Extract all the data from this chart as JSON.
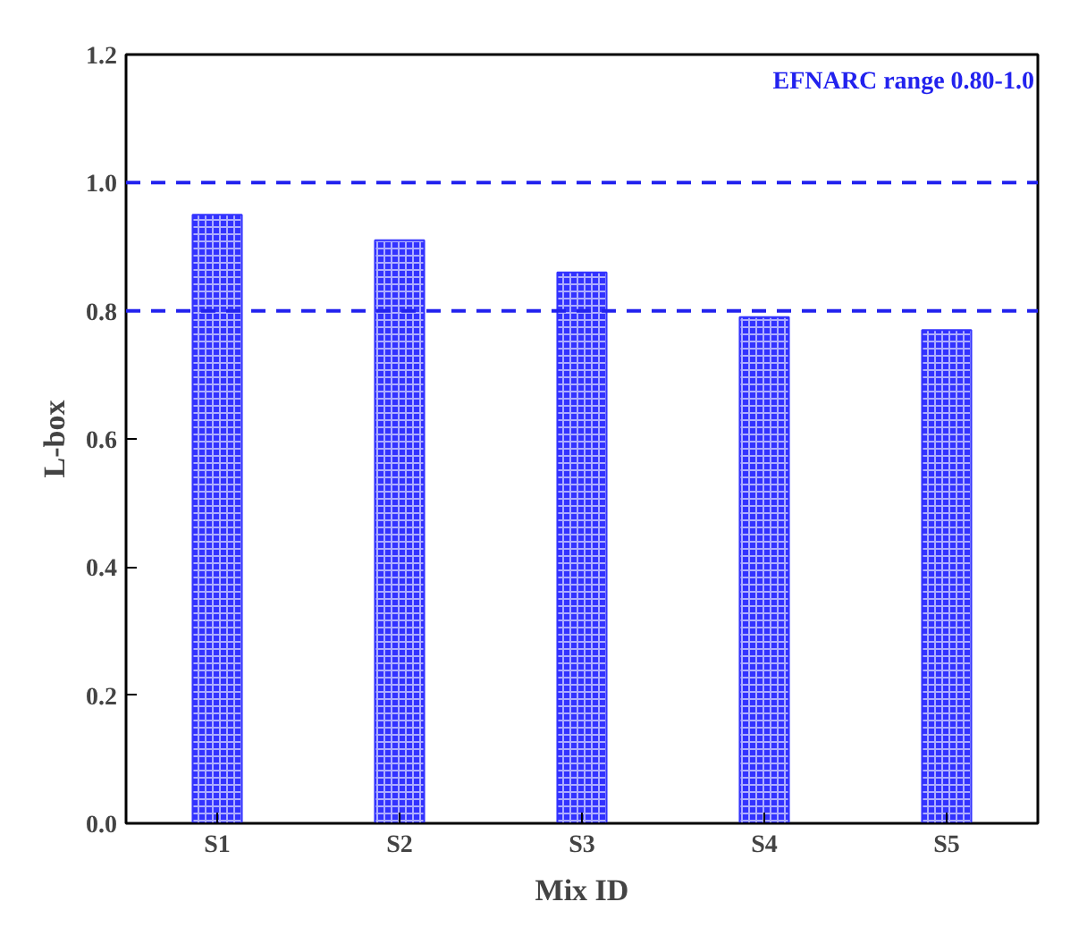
{
  "chart_data": {
    "type": "bar",
    "xlabel": "Mix ID",
    "ylabel": "L-box",
    "categories": [
      "S1",
      "S2",
      "S3",
      "S4",
      "S5"
    ],
    "values": [
      0.95,
      0.91,
      0.86,
      0.79,
      0.77
    ],
    "color": "#3333ff",
    "ylim": [
      0,
      1.2
    ],
    "yticks": [
      {
        "value": 0,
        "label": "0.0"
      },
      {
        "value": 0.2,
        "label": "0.2"
      },
      {
        "value": 0.4,
        "label": "0.4"
      },
      {
        "value": 0.6,
        "label": "0.6"
      },
      {
        "value": 0.8,
        "label": "0.8"
      },
      {
        "value": 1.0,
        "label": "1.0"
      },
      {
        "value": 1.2,
        "label": "1.2"
      }
    ],
    "ref_lines": [
      {
        "axis": "y",
        "value": 0.8,
        "color": "#2222ee",
        "line_style": "dashed"
      },
      {
        "axis": "y",
        "value": 1.0,
        "color": "#2222ee",
        "line_style": "dashed"
      }
    ],
    "annotations": [
      "EFNARC range 0.80-1.0"
    ],
    "grid": false
  }
}
